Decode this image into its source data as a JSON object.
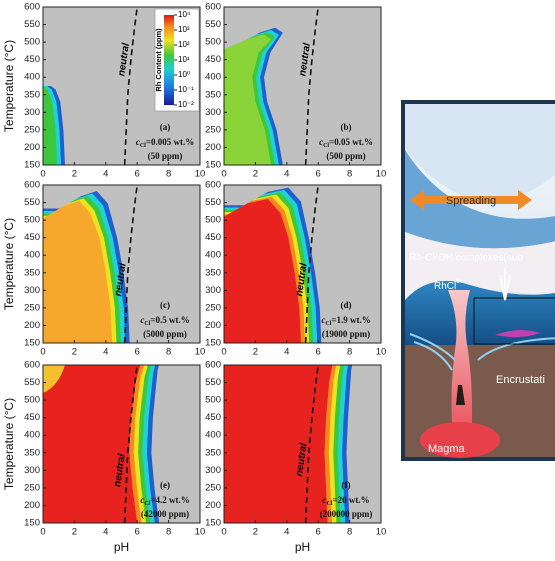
{
  "chart_data": [
    {
      "type": "contour",
      "xlim": [
        0,
        10
      ],
      "ylim": [
        150,
        600
      ],
      "xticks": [
        0,
        2,
        4,
        6,
        8,
        10
      ],
      "yticks": [
        150,
        200,
        250,
        300,
        350,
        400,
        450,
        500,
        550,
        600
      ],
      "y_label": "Temperature (°C)",
      "annotation": {
        "letter": "(a)",
        "symbol": "c",
        "sub": "Cl",
        "conc": "=0.005 wt.%",
        "ppm": "(50 ppm)"
      },
      "neutral": {
        "label": "neutral",
        "x": [
          5.2,
          5.3,
          5.4,
          5.6,
          5.8,
          6.0
        ],
        "y": [
          150,
          250,
          350,
          450,
          530,
          600
        ]
      },
      "colorbar": {
        "title": "Rh Content (ppm)",
        "log": true,
        "ticks": [
          {
            "value": 10000,
            "label": "10⁴"
          },
          {
            "value": 1000,
            "label": "10³"
          },
          {
            "value": 100,
            "label": "10²"
          },
          {
            "value": 10,
            "label": "10¹"
          },
          {
            "value": 1,
            "label": "10⁰"
          },
          {
            "value": 0.1,
            "label": "10⁻¹"
          },
          {
            "value": 0.01,
            "label": "10⁻²"
          }
        ]
      }
    },
    {
      "type": "contour",
      "xlim": [
        0,
        10
      ],
      "ylim": [
        150,
        600
      ],
      "xticks": [
        0,
        2,
        4,
        6,
        8,
        10
      ],
      "yticks": [
        150,
        200,
        250,
        300,
        350,
        400,
        450,
        500,
        550,
        600
      ],
      "annotation": {
        "letter": "(b)",
        "symbol": "c",
        "sub": "Cl",
        "conc": "=0.05 wt.%",
        "ppm": "(500 ppm)"
      },
      "neutral": {
        "label": "neutral",
        "x": [
          5.2,
          5.3,
          5.4,
          5.6,
          5.8,
          6.0
        ],
        "y": [
          150,
          250,
          350,
          450,
          530,
          600
        ]
      }
    },
    {
      "type": "contour",
      "xlim": [
        0,
        10
      ],
      "ylim": [
        150,
        600
      ],
      "xticks": [
        0,
        2,
        4,
        6,
        8,
        10
      ],
      "yticks": [
        150,
        200,
        250,
        300,
        350,
        400,
        450,
        500,
        550,
        600
      ],
      "y_label": "Temperature (°C)",
      "annotation": {
        "letter": "(c)",
        "symbol": "c",
        "sub": "Cl",
        "conc": "=0.5 wt.%",
        "ppm": "(5000 ppm)"
      },
      "neutral": {
        "label": "neutral",
        "x": [
          5.2,
          5.3,
          5.4,
          5.6,
          5.8,
          6.0
        ],
        "y": [
          150,
          250,
          350,
          450,
          530,
          600
        ]
      }
    },
    {
      "type": "contour",
      "xlim": [
        0,
        10
      ],
      "ylim": [
        150,
        600
      ],
      "xticks": [
        0,
        2,
        4,
        6,
        8,
        10
      ],
      "yticks": [
        150,
        200,
        250,
        300,
        350,
        400,
        450,
        500,
        550,
        600
      ],
      "annotation": {
        "letter": "(d)",
        "symbol": "c",
        "sub": "Cl",
        "conc": "=1.9 wt.%",
        "ppm": "(19000 ppm)"
      },
      "neutral": {
        "label": "neutral",
        "x": [
          5.2,
          5.3,
          5.4,
          5.6,
          5.8,
          6.0
        ],
        "y": [
          150,
          250,
          350,
          450,
          530,
          600
        ]
      }
    },
    {
      "type": "contour",
      "xlim": [
        0,
        10
      ],
      "ylim": [
        150,
        600
      ],
      "xticks": [
        0,
        2,
        4,
        6,
        8,
        10
      ],
      "yticks": [
        150,
        200,
        250,
        300,
        350,
        400,
        450,
        500,
        550,
        600
      ],
      "y_label": "Temperature (°C)",
      "x_label": "pH",
      "annotation": {
        "letter": "(e)",
        "symbol": "c",
        "sub": "Cl",
        "conc": "=4.2 wt.%",
        "ppm": "(42000 ppm)"
      },
      "neutral": {
        "label": "neutral",
        "x": [
          5.2,
          5.3,
          5.4,
          5.6,
          5.8,
          6.0
        ],
        "y": [
          150,
          250,
          350,
          450,
          530,
          600
        ]
      }
    },
    {
      "type": "contour",
      "xlim": [
        0,
        10
      ],
      "ylim": [
        150,
        600
      ],
      "xticks": [
        0,
        2,
        4,
        6,
        8,
        10
      ],
      "yticks": [
        150,
        200,
        250,
        300,
        350,
        400,
        450,
        500,
        550,
        600
      ],
      "x_label": "pH",
      "annotation": {
        "letter": "(f)",
        "symbol": "c",
        "sub": "Cl",
        "conc": "=20 wt.%",
        "ppm": "(200000 ppm)"
      },
      "neutral": {
        "label": "neutral",
        "x": [
          5.2,
          5.3,
          5.4,
          5.6,
          5.8,
          6.0
        ],
        "y": [
          150,
          250,
          350,
          450,
          530,
          600
        ]
      }
    }
  ],
  "diagram": {
    "spreading": "Spreading",
    "complexes": "Rh-Cl-OH complexes(sub",
    "rhcl": "RhCl",
    "rhcl_sup": "3−",
    "encrustation": "Encrustati",
    "magma": "Magma"
  }
}
